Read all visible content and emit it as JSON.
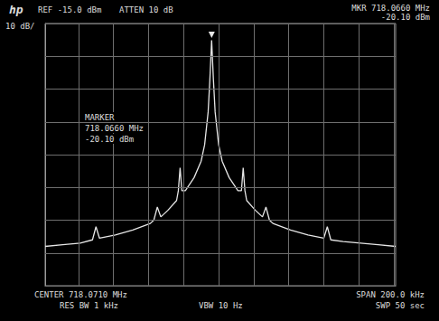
{
  "chart_data": {
    "type": "line",
    "annotations": [
      "hp",
      "REF -15.0 dBm",
      "ATTEN 10 dB",
      "MKR 718.0660 MHz",
      "-20.10 dBm",
      "10 dB/",
      "MARKER",
      "718.0660 MHz",
      "-20.10 dBm",
      "CENTER 718.0710 MHz",
      "RES BW 1 kHz",
      "VBW 10 Hz",
      "SPAN 200.0 kHz",
      "SWP 50 sec"
    ],
    "x": [
      717.971,
      717.981,
      717.991,
      717.998,
      718.0,
      718.002,
      718.011,
      718.021,
      718.031,
      718.033,
      718.035,
      718.037,
      718.041,
      718.046,
      718.047,
      718.048,
      718.049,
      718.051,
      718.056,
      718.06,
      718.062,
      718.064,
      718.065,
      718.066,
      718.067,
      718.068,
      718.07,
      718.072,
      718.076,
      718.081,
      718.083,
      718.084,
      718.085,
      718.086,
      718.091,
      718.095,
      718.097,
      718.099,
      718.101,
      718.111,
      718.121,
      718.13,
      718.132,
      718.134,
      718.141,
      718.151,
      718.161,
      718.171
    ],
    "values": [
      -83,
      -82.5,
      -82,
      -81,
      -77,
      -80.5,
      -79.5,
      -78,
      -76,
      -75,
      -71,
      -74,
      -72,
      -69,
      -66,
      -59,
      -66,
      -66,
      -62,
      -57,
      -52,
      -42,
      -32,
      -20.1,
      -32,
      -42,
      -52,
      -57,
      -62,
      -66,
      -66,
      -59,
      -66,
      -69,
      -72,
      -74,
      -71,
      -75,
      -76,
      -78,
      -79.5,
      -80.5,
      -77,
      -81,
      -81.5,
      -82,
      -82.5,
      -83
    ],
    "color": "#e6e6e6",
    "xlim": [
      717.971,
      718.171
    ],
    "xticks": [
      717.971,
      717.991,
      718.011,
      718.031,
      718.051,
      718.071,
      718.091,
      718.111,
      718.131,
      718.151,
      718.171
    ],
    "ylim": [
      -95,
      -15
    ],
    "yticks": [
      -95,
      -85,
      -75,
      -65,
      -55,
      -45,
      -35,
      -25,
      -15
    ],
    "grid": true,
    "tick_labels": false,
    "marker": "none",
    "line_style": "solid"
  }
}
